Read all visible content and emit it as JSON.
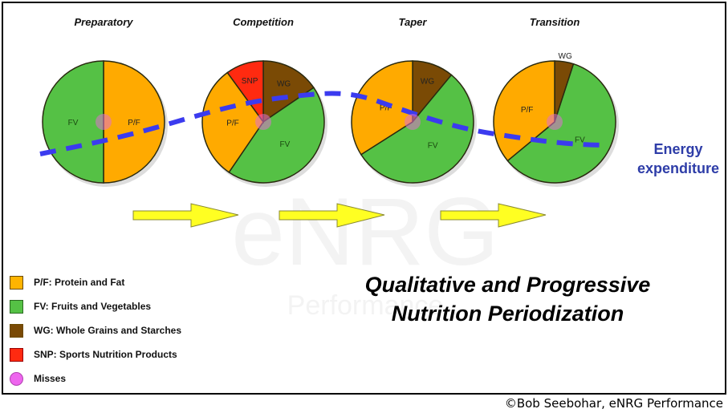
{
  "chart_data": [
    {
      "type": "pie",
      "title": "Preparatory",
      "slices": [
        {
          "label": "P/F",
          "value": 50,
          "color": "#ffaa00"
        },
        {
          "label": "FV",
          "value": 50,
          "color": "#55c145"
        }
      ]
    },
    {
      "type": "pie",
      "title": "Competition",
      "slices": [
        {
          "label": "WG",
          "value": 15.5,
          "color": "#7a4a05"
        },
        {
          "label": "FV",
          "value": 44,
          "color": "#55c145"
        },
        {
          "label": "P/F",
          "value": 30.5,
          "color": "#ffaa00"
        },
        {
          "label": "SNP",
          "value": 10,
          "color": "#ff2a10"
        }
      ]
    },
    {
      "type": "pie",
      "title": "Taper",
      "slices": [
        {
          "label": "WG",
          "value": 11,
          "color": "#7a4a05"
        },
        {
          "label": "FV",
          "value": 55,
          "color": "#55c145"
        },
        {
          "label": "P/F",
          "value": 34,
          "color": "#ffaa00"
        }
      ]
    },
    {
      "type": "pie",
      "title": "Transition",
      "slices": [
        {
          "label": "WG",
          "value": 5,
          "color": "#7a4a05",
          "label_outside": true
        },
        {
          "label": "FV",
          "value": 59,
          "color": "#55c145"
        },
        {
          "label": "P/F",
          "value": 36,
          "color": "#ffaa00"
        }
      ]
    }
  ],
  "energy_line": {
    "label_line1": "Energy",
    "label_line2": "expenditure",
    "color": "#3b3bef"
  },
  "legend": [
    {
      "label": "P/F: Protein and Fat",
      "color": "#ffb400",
      "shape": "square"
    },
    {
      "label": "FV: Fruits and Vegetables",
      "color": "#55c145",
      "shape": "square"
    },
    {
      "label": "WG: Whole Grains and Starches",
      "color": "#7a4a05",
      "shape": "square"
    },
    {
      "label": "SNP: Sports Nutrition Products",
      "color": "#ff2a10",
      "shape": "square"
    },
    {
      "label": "Misses",
      "color": "#ee66ee",
      "shape": "circle"
    }
  ],
  "title_line1": "Qualitative and Progressive",
  "title_line2": "Nutrition Periodization",
  "watermark": {
    "text": "eNRG",
    "subtext": "Performance"
  },
  "footer": "©Bob Seebohar, eNRG Performance",
  "colors": {
    "arrow": "#ffff22",
    "miss": "#e070d0"
  }
}
